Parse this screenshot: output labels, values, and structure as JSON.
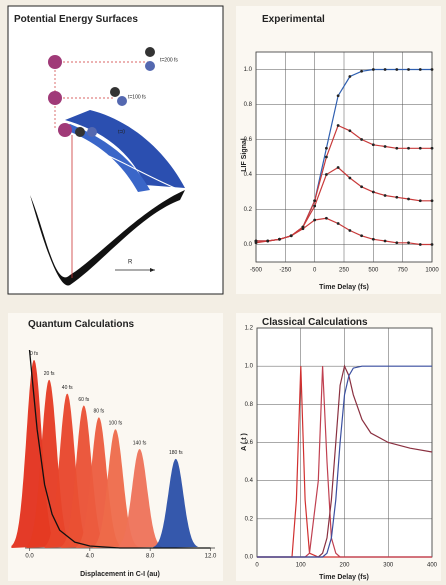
{
  "diagram": {
    "title": "Potential Energy Surfaces",
    "labels": [
      "t=200 fs",
      "t=100 fs",
      "t=0"
    ],
    "axis_label": "R"
  },
  "chart_data": [
    {
      "type": "line",
      "title": "Experimental",
      "x_label": "Time Delay (fs)",
      "y_label": "LIF Signal",
      "x": [
        -500,
        -400,
        -300,
        -200,
        -100,
        0,
        100,
        200,
        300,
        400,
        500,
        600,
        700,
        800,
        900,
        1000
      ],
      "series": [
        {
          "color": "#2f5fb0",
          "values": [
            0.02,
            0.02,
            0.03,
            0.05,
            0.1,
            0.25,
            0.55,
            0.85,
            0.96,
            0.99,
            1.0,
            1.0,
            1.0,
            1.0,
            1.0,
            1.0
          ]
        },
        {
          "color": "#c83a3a",
          "values": [
            0.02,
            0.02,
            0.03,
            0.05,
            0.1,
            0.25,
            0.5,
            0.68,
            0.65,
            0.6,
            0.57,
            0.56,
            0.55,
            0.55,
            0.55,
            0.55
          ]
        },
        {
          "color": "#c83a3a",
          "values": [
            0.02,
            0.02,
            0.03,
            0.05,
            0.1,
            0.22,
            0.4,
            0.44,
            0.38,
            0.33,
            0.3,
            0.28,
            0.27,
            0.26,
            0.25,
            0.25
          ]
        },
        {
          "color": "#c83a3a",
          "values": [
            0.01,
            0.02,
            0.03,
            0.05,
            0.09,
            0.14,
            0.15,
            0.12,
            0.08,
            0.05,
            0.03,
            0.02,
            0.01,
            0.01,
            0.0,
            0.0
          ]
        }
      ],
      "markers": true,
      "xlim": [
        -500,
        1000
      ],
      "xticks": [
        -500,
        -250,
        0,
        250,
        500,
        750,
        1000
      ],
      "ylim": [
        -0.1,
        1.1
      ],
      "yticks": [
        {
          "value": 0,
          "label": "0.0"
        },
        {
          "value": 0.2,
          "label": "0.2"
        },
        {
          "value": 0.4,
          "label": "0.4"
        },
        {
          "value": 0.6,
          "label": "0.6"
        },
        {
          "value": 0.8,
          "label": "0.8"
        },
        {
          "value": 1,
          "label": "1.0"
        }
      ],
      "grid": true
    },
    {
      "type": "area",
      "title": "Quantum Calculations",
      "x_label": "Displacement in C-I (au)",
      "series": [
        {
          "name": "0 fs",
          "color": "#e3301c",
          "center": 0.3,
          "peak": 0.95
        },
        {
          "name": "20 fs",
          "color": "#e53a22",
          "center": 1.3,
          "peak": 0.85
        },
        {
          "name": "40 fs",
          "color": "#e8442a",
          "center": 2.5,
          "peak": 0.78
        },
        {
          "name": "60 fs",
          "color": "#ea5034",
          "center": 3.6,
          "peak": 0.72
        },
        {
          "name": "80 fs",
          "color": "#ec5c3e",
          "center": 4.6,
          "peak": 0.66
        },
        {
          "name": "100 fs",
          "color": "#ee6a4a",
          "center": 5.7,
          "peak": 0.6
        },
        {
          "name": "140 fs",
          "color": "#ee7258",
          "center": 7.3,
          "peak": 0.5
        },
        {
          "name": "180 fs",
          "color": "#2a4fa8",
          "center": 9.7,
          "peak": 0.45
        }
      ],
      "curve": {
        "color": "#111111",
        "x": [
          0,
          0.5,
          1,
          1.5,
          2,
          3,
          4,
          6,
          8,
          12
        ],
        "values": [
          1.0,
          0.6,
          0.32,
          0.17,
          0.09,
          0.03,
          0.01,
          0.0,
          0.0,
          0.0
        ]
      },
      "xlim": [
        -0.3,
        12.3
      ],
      "xticks": [
        {
          "value": 0,
          "label": "0.0"
        },
        {
          "value": 4,
          "label": "4.0"
        },
        {
          "value": 8,
          "label": "8.0"
        },
        {
          "value": 12,
          "label": "12.0"
        }
      ],
      "ylim": [
        0,
        1
      ],
      "grid": false
    },
    {
      "type": "line",
      "title": "Classical Calculations",
      "x_label": "Time Delay (fs)",
      "y_label": "A ( t )",
      "x": [
        0,
        80,
        90,
        100,
        110,
        120,
        140,
        150,
        160,
        170,
        180,
        190,
        200,
        210,
        220,
        240,
        260,
        300,
        350,
        400
      ],
      "series": [
        {
          "color": "#d03030",
          "values": [
            0,
            0,
            0.3,
            1.0,
            0.3,
            0.02,
            0,
            0,
            0,
            0,
            0,
            0,
            0,
            0,
            0,
            0,
            0,
            0,
            0,
            0
          ]
        },
        {
          "color": "#c04050",
          "values": [
            0,
            0,
            0,
            0,
            0,
            0.02,
            0.4,
            1.0,
            0.5,
            0.1,
            0.02,
            0,
            0,
            0,
            0,
            0,
            0,
            0,
            0,
            0
          ]
        },
        {
          "color": "#8a3040",
          "values": [
            0,
            0,
            0,
            0,
            0,
            0,
            0,
            0.02,
            0.1,
            0.3,
            0.6,
            0.9,
            1.0,
            0.95,
            0.85,
            0.72,
            0.65,
            0.6,
            0.57,
            0.55
          ]
        },
        {
          "color": "#3a4fa0",
          "values": [
            0,
            0,
            0,
            0,
            0,
            0,
            0,
            0,
            0.02,
            0.1,
            0.3,
            0.6,
            0.85,
            0.95,
            0.99,
            1.0,
            1.0,
            1.0,
            1.0,
            1.0
          ]
        }
      ],
      "markers": false,
      "xlim": [
        0,
        400
      ],
      "xticks": [
        0,
        100,
        200,
        300,
        400
      ],
      "ylim": [
        0,
        1.2
      ],
      "yticks": [
        {
          "value": 0,
          "label": "0.0"
        },
        {
          "value": 0.2,
          "label": "0.2"
        },
        {
          "value": 0.4,
          "label": "0.4"
        },
        {
          "value": 0.6,
          "label": "0.6"
        },
        {
          "value": 0.8,
          "label": "0.8"
        },
        {
          "value": 1,
          "label": "1.0"
        },
        {
          "value": 1.2,
          "label": "1.2"
        }
      ],
      "grid": true
    }
  ]
}
